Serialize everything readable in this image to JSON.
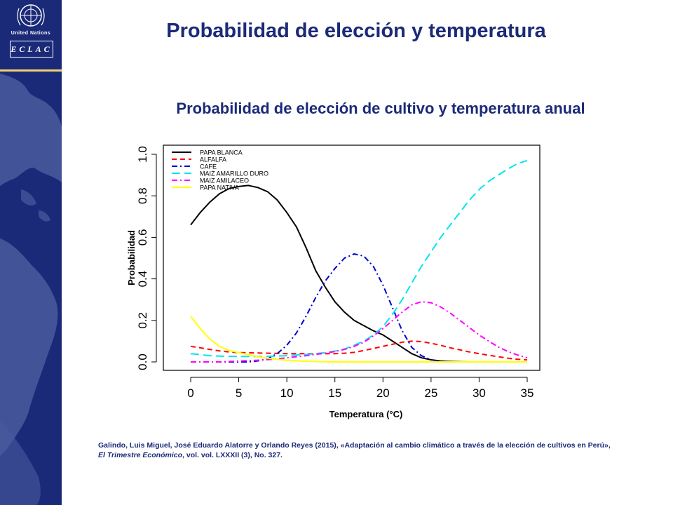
{
  "header": {
    "main_title": "Probabilidad de elección y temperatura",
    "org_name": "United Nations",
    "org_acronym": "ECLAC"
  },
  "colors": {
    "brand_blue": "#1b2a78",
    "accent_yellow": "#f2d070"
  },
  "citation": {
    "part1": "Galindo, Luis Miguel, José Eduardo Alatorre y Orlando Reyes (2015), «Adaptación al cambio climático a través de la elección de cultivos en Perú», ",
    "journal": "El Trimestre Económico",
    "part2": ", vol. vol. LXXXII (3), No. 327."
  },
  "chart_data": {
    "type": "line",
    "title": "Probabilidad de elección de cultivo y temperatura anual",
    "xlabel": "Temperatura (°C)",
    "ylabel": "Probabilidad",
    "xlim": [
      0,
      35
    ],
    "ylim": [
      0,
      1
    ],
    "x_ticks": [
      0,
      5,
      10,
      15,
      20,
      25,
      30,
      35
    ],
    "y_ticks": [
      0.0,
      0.2,
      0.4,
      0.6,
      0.8,
      1.0
    ],
    "y_tick_labels": [
      "0.0",
      "0.2",
      "0.4",
      "0.6",
      "0.8",
      "1.0"
    ],
    "legend_position": "top-left",
    "grid": false,
    "x": [
      0,
      1,
      2,
      3,
      4,
      5,
      6,
      7,
      8,
      9,
      10,
      11,
      12,
      13,
      14,
      15,
      16,
      17,
      18,
      19,
      20,
      21,
      22,
      23,
      24,
      25,
      26,
      27,
      28,
      29,
      30,
      31,
      32,
      33,
      34,
      35
    ],
    "series": [
      {
        "name": "PAPA BLANCA",
        "color": "#000000",
        "dash": "solid",
        "values": [
          0.66,
          0.72,
          0.77,
          0.81,
          0.835,
          0.845,
          0.85,
          0.84,
          0.82,
          0.78,
          0.72,
          0.65,
          0.55,
          0.44,
          0.36,
          0.29,
          0.24,
          0.2,
          0.175,
          0.15,
          0.13,
          0.1,
          0.07,
          0.04,
          0.02,
          0.01,
          0.004,
          0.002,
          0.001,
          0.0,
          0.0,
          0.0,
          0.0,
          0.0,
          0.0,
          0.0
        ]
      },
      {
        "name": "ALFALFA",
        "color": "#ff0000",
        "dash": "dashed",
        "values": [
          0.075,
          0.068,
          0.06,
          0.053,
          0.048,
          0.045,
          0.044,
          0.043,
          0.042,
          0.041,
          0.04,
          0.04,
          0.04,
          0.04,
          0.04,
          0.04,
          0.042,
          0.046,
          0.055,
          0.065,
          0.075,
          0.085,
          0.095,
          0.1,
          0.098,
          0.09,
          0.08,
          0.068,
          0.058,
          0.048,
          0.04,
          0.032,
          0.025,
          0.018,
          0.013,
          0.01
        ]
      },
      {
        "name": "CAFE",
        "color": "#0000cc",
        "dash": "dashdot",
        "values": [
          0.0,
          0.0,
          0.0,
          0.0,
          0.0,
          0.0,
          0.0,
          0.005,
          0.015,
          0.04,
          0.08,
          0.14,
          0.22,
          0.31,
          0.39,
          0.45,
          0.5,
          0.52,
          0.51,
          0.46,
          0.37,
          0.26,
          0.15,
          0.07,
          0.03,
          0.01,
          0.004,
          0.001,
          0.0,
          0.0,
          0.0,
          0.0,
          0.0,
          0.0,
          0.0,
          0.0
        ]
      },
      {
        "name": "MAIZ AMARILLO DURO",
        "color": "#00e5ee",
        "dash": "longdash",
        "values": [
          0.04,
          0.035,
          0.03,
          0.028,
          0.027,
          0.026,
          0.026,
          0.026,
          0.027,
          0.028,
          0.03,
          0.033,
          0.036,
          0.04,
          0.045,
          0.052,
          0.062,
          0.08,
          0.1,
          0.13,
          0.17,
          0.23,
          0.3,
          0.38,
          0.46,
          0.53,
          0.6,
          0.66,
          0.72,
          0.78,
          0.83,
          0.87,
          0.9,
          0.93,
          0.955,
          0.97
        ]
      },
      {
        "name": "MAIZ AMILACEO",
        "color": "#ff00ff",
        "dash": "dashdot",
        "values": [
          0.0,
          0.0,
          0.0,
          0.0,
          0.002,
          0.004,
          0.006,
          0.008,
          0.011,
          0.015,
          0.02,
          0.025,
          0.03,
          0.036,
          0.042,
          0.05,
          0.06,
          0.075,
          0.095,
          0.125,
          0.16,
          0.2,
          0.24,
          0.275,
          0.29,
          0.285,
          0.265,
          0.235,
          0.2,
          0.165,
          0.13,
          0.1,
          0.072,
          0.05,
          0.033,
          0.02
        ]
      },
      {
        "name": "PAPA NATIVA",
        "color": "#ffff00",
        "dash": "solid",
        "values": [
          0.22,
          0.16,
          0.11,
          0.075,
          0.055,
          0.045,
          0.035,
          0.025,
          0.018,
          0.012,
          0.008,
          0.005,
          0.003,
          0.002,
          0.001,
          0.0,
          0.0,
          0.0,
          0.0,
          0.0,
          0.0,
          0.0,
          0.0,
          0.0,
          0.0,
          0.0,
          0.0,
          0.0,
          0.0,
          0.0,
          0.0,
          0.0,
          0.0,
          0.0,
          0.0,
          0.0
        ]
      }
    ]
  }
}
